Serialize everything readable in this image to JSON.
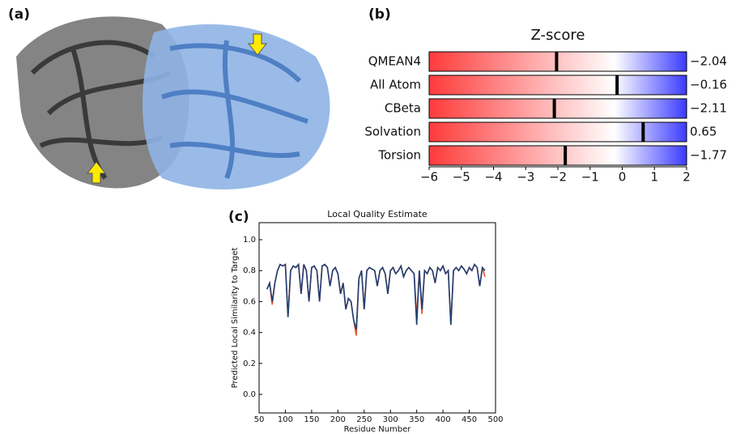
{
  "panel_labels": [
    "(a)",
    "(b)",
    "(c)"
  ],
  "chart_data": [
    {
      "type": "bullet",
      "title": "Z-score",
      "categories": [
        "QMEAN4",
        "All Atom",
        "CBeta",
        "Solvation",
        "Torsion"
      ],
      "values": [
        -2.04,
        -0.16,
        -2.11,
        0.65,
        -1.77
      ],
      "value_labels": [
        "−2.04",
        "−0.16",
        "−2.11",
        "0.65",
        "−1.77"
      ],
      "xlim": [
        -6,
        2
      ],
      "xticks": [
        {
          "value": -6,
          "label": "−6"
        },
        {
          "value": -5,
          "label": "−5"
        },
        {
          "value": -4,
          "label": "−4"
        },
        {
          "value": -3,
          "label": "−3"
        },
        {
          "value": -2,
          "label": "−2"
        },
        {
          "value": -1,
          "label": "−1"
        },
        0,
        1,
        2
      ],
      "colors": [
        "#ff3b3b",
        "#ffffff",
        "#3b3bff"
      ],
      "marker_color": "#000000"
    },
    {
      "type": "line",
      "title": "Local Quality Estimate",
      "xlabel": "Residue Number",
      "ylabel": "Predicted Local Similarity to Target",
      "xlim": [
        50,
        500
      ],
      "ylim": [
        -0.12,
        1.11
      ],
      "xticks": [
        50,
        100,
        150,
        200,
        250,
        300,
        350,
        400,
        450,
        500
      ],
      "yticks": [
        {
          "value": 0,
          "label": "0.0"
        },
        0.2,
        0.4,
        0.6,
        0.8,
        {
          "value": 1,
          "label": "1.0"
        }
      ],
      "x": [
        65,
        70,
        75,
        80,
        85,
        90,
        95,
        100,
        105,
        110,
        115,
        120,
        125,
        130,
        135,
        140,
        145,
        150,
        155,
        160,
        165,
        170,
        175,
        180,
        185,
        190,
        195,
        200,
        205,
        210,
        215,
        220,
        225,
        230,
        235,
        240,
        245,
        250,
        255,
        260,
        265,
        270,
        275,
        280,
        285,
        290,
        295,
        300,
        305,
        310,
        315,
        320,
        325,
        330,
        335,
        340,
        345,
        350,
        355,
        360,
        365,
        370,
        375,
        380,
        385,
        390,
        395,
        400,
        405,
        410,
        415,
        420,
        425,
        430,
        435,
        440,
        445,
        450,
        455,
        460,
        465,
        470,
        475,
        480
      ],
      "series": [
        {
          "color": "#e8502a",
          "values": [
            0.68,
            0.72,
            0.58,
            0.72,
            0.8,
            0.84,
            0.83,
            0.84,
            0.5,
            0.8,
            0.83,
            0.82,
            0.84,
            0.65,
            0.84,
            0.8,
            0.6,
            0.82,
            0.83,
            0.8,
            0.6,
            0.83,
            0.84,
            0.82,
            0.7,
            0.8,
            0.82,
            0.78,
            0.65,
            0.72,
            0.55,
            0.62,
            0.6,
            0.48,
            0.38,
            0.75,
            0.8,
            0.55,
            0.8,
            0.82,
            0.81,
            0.8,
            0.7,
            0.8,
            0.82,
            0.78,
            0.65,
            0.8,
            0.82,
            0.78,
            0.8,
            0.83,
            0.76,
            0.8,
            0.82,
            0.8,
            0.78,
            0.5,
            0.8,
            0.52,
            0.8,
            0.78,
            0.82,
            0.8,
            0.72,
            0.82,
            0.8,
            0.83,
            0.78,
            0.8,
            0.45,
            0.8,
            0.82,
            0.8,
            0.83,
            0.81,
            0.78,
            0.82,
            0.8,
            0.84,
            0.82,
            0.7,
            0.82,
            0.76
          ]
        },
        {
          "color": "#1f3f73",
          "values": [
            0.68,
            0.72,
            0.6,
            0.72,
            0.8,
            0.84,
            0.83,
            0.84,
            0.5,
            0.8,
            0.83,
            0.82,
            0.84,
            0.65,
            0.84,
            0.8,
            0.6,
            0.82,
            0.83,
            0.8,
            0.6,
            0.83,
            0.84,
            0.82,
            0.7,
            0.8,
            0.82,
            0.78,
            0.65,
            0.72,
            0.55,
            0.62,
            0.6,
            0.48,
            0.42,
            0.75,
            0.8,
            0.55,
            0.8,
            0.82,
            0.81,
            0.8,
            0.7,
            0.8,
            0.82,
            0.78,
            0.65,
            0.8,
            0.82,
            0.78,
            0.8,
            0.83,
            0.76,
            0.8,
            0.82,
            0.8,
            0.78,
            0.45,
            0.8,
            0.55,
            0.8,
            0.78,
            0.82,
            0.8,
            0.72,
            0.82,
            0.8,
            0.83,
            0.78,
            0.8,
            0.45,
            0.8,
            0.82,
            0.8,
            0.83,
            0.81,
            0.78,
            0.82,
            0.8,
            0.84,
            0.82,
            0.7,
            0.82,
            0.8
          ]
        }
      ]
    }
  ]
}
